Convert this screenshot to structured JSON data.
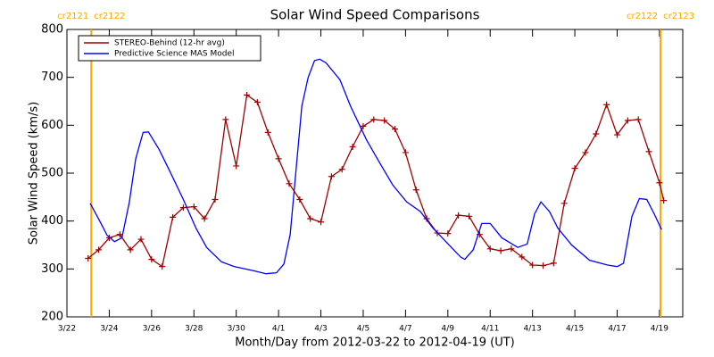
{
  "chart_data": {
    "type": "line",
    "title": "Solar Wind Speed Comparisons",
    "xlabel": "Month/Day from 2012-03-22 to 2012-04-19 (UT)",
    "ylabel": "Solar Wind Speed (km/s)",
    "xlim": [
      0,
      29.1
    ],
    "xticks": [
      {
        "value": 0,
        "label": "3/22"
      },
      {
        "value": 2,
        "label": "3/24"
      },
      {
        "value": 4,
        "label": "3/26"
      },
      {
        "value": 6,
        "label": "3/28"
      },
      {
        "value": 8,
        "label": "3/30"
      },
      {
        "value": 10,
        "label": "4/1"
      },
      {
        "value": 12,
        "label": "4/3"
      },
      {
        "value": 14,
        "label": "4/5"
      },
      {
        "value": 16,
        "label": "4/7"
      },
      {
        "value": 18,
        "label": "4/9"
      },
      {
        "value": 20,
        "label": "4/11"
      },
      {
        "value": 22,
        "label": "4/13"
      },
      {
        "value": 24,
        "label": "4/15"
      },
      {
        "value": 26,
        "label": "4/17"
      },
      {
        "value": 28,
        "label": "4/19"
      }
    ],
    "ylim": [
      200,
      800
    ],
    "yticks": [
      200,
      300,
      400,
      500,
      600,
      700,
      800
    ],
    "legend": "upper left",
    "vlines": [
      {
        "x": 1.15,
        "color": "#ffa500",
        "labels": [
          "cr2121",
          "cr2122"
        ]
      },
      {
        "x": 28.05,
        "color": "#ffa500",
        "labels": [
          "cr2122",
          "cr2123"
        ]
      }
    ],
    "series": [
      {
        "name": "STEREO-Behind (12-hr avg)",
        "color": "#a00000",
        "marker": "+",
        "x": [
          1,
          1.5,
          2,
          2.5,
          3,
          3.5,
          4,
          4.5,
          5,
          5.5,
          6,
          6.5,
          7,
          7.5,
          8,
          8.5,
          9,
          9.5,
          10,
          10.5,
          11,
          11.5,
          12,
          12.5,
          13,
          13.5,
          14,
          14.5,
          15,
          15.5,
          16,
          16.5,
          17,
          17.5,
          18,
          18.5,
          19,
          19.5,
          20,
          20.5,
          21,
          21.5,
          22,
          22.5,
          23,
          23.5,
          24,
          24.5,
          25,
          25.5,
          26,
          26.5,
          27,
          27.5,
          28,
          28.2
        ],
        "values": [
          322,
          340,
          365,
          372,
          340,
          362,
          320,
          305,
          408,
          428,
          430,
          405,
          445,
          612,
          515,
          663,
          648,
          585,
          530,
          478,
          445,
          405,
          398,
          493,
          508,
          555,
          598,
          612,
          610,
          592,
          543,
          465,
          405,
          375,
          374,
          412,
          410,
          372,
          342,
          338,
          342,
          325,
          308,
          307,
          312,
          437,
          510,
          543,
          582,
          643,
          580,
          610,
          612,
          545,
          480,
          443
        ]
      },
      {
        "name": "Predictive Science MAS Model",
        "color": "#0000ff",
        "x": [
          1.1,
          1.55,
          1.9,
          2.25,
          2.6,
          2.95,
          3.25,
          3.6,
          3.85,
          4.35,
          4.85,
          5.5,
          6.1,
          6.6,
          7.3,
          7.9,
          8.85,
          9.4,
          9.9,
          10.25,
          10.55,
          11.1,
          11.4,
          11.7,
          11.95,
          12.25,
          12.9,
          13.4,
          14.15,
          14.8,
          15.4,
          16.05,
          16.7,
          17.3,
          17.95,
          18.6,
          18.8,
          19.2,
          19.6,
          20,
          20.55,
          21.3,
          21.75,
          22.1,
          22.4,
          22.8,
          23.2,
          23.85,
          24.7,
          25.55,
          26,
          26.3,
          26.7,
          27.05,
          27.4,
          27.75,
          28.1
        ],
        "values": [
          437,
          400,
          370,
          357,
          365,
          440,
          530,
          585,
          586,
          550,
          505,
          445,
          385,
          345,
          315,
          305,
          296,
          290,
          292,
          310,
          372,
          640,
          700,
          735,
          738,
          730,
          695,
          640,
          570,
          520,
          475,
          440,
          420,
          385,
          355,
          325,
          320,
          340,
          395,
          395,
          365,
          345,
          352,
          415,
          440,
          420,
          385,
          350,
          318,
          308,
          305,
          312,
          410,
          447,
          445,
          415,
          382
        ]
      }
    ]
  }
}
